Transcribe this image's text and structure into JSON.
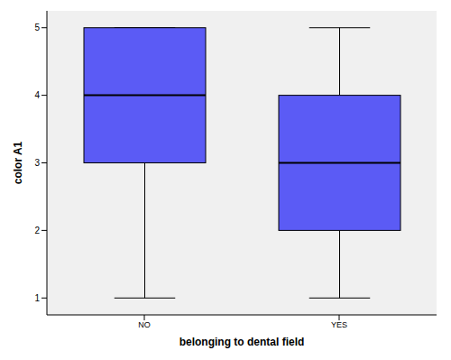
{
  "chart_data": {
    "type": "box",
    "x_label": "belonging to dental field",
    "y_label": "color A1",
    "categories": [
      "NO",
      "YES"
    ],
    "boxes": [
      {
        "min": 1,
        "q1": 3,
        "median": 4,
        "q3": 5,
        "max": 5
      },
      {
        "min": 1,
        "q1": 2,
        "median": 3,
        "q3": 4,
        "max": 5
      }
    ],
    "color": "#5b5bf5",
    "ylim": [
      0.75,
      5.25
    ],
    "yticks": [
      1,
      2,
      3,
      4,
      5
    ],
    "grid": false
  }
}
